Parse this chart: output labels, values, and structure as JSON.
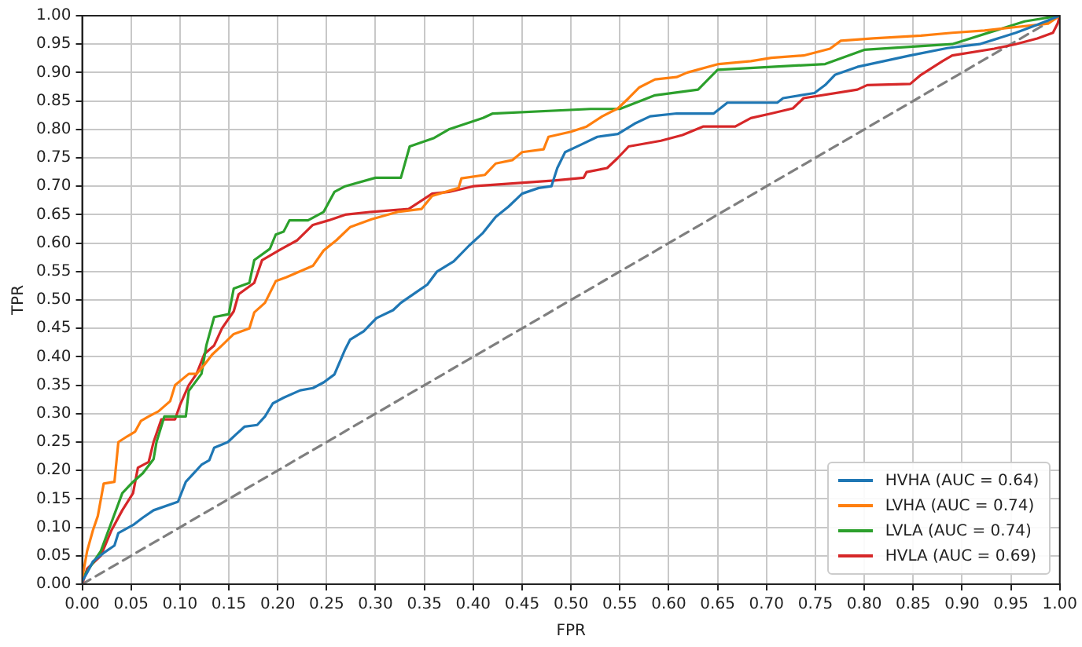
{
  "chart_data": {
    "type": "line",
    "xlabel": "FPR",
    "ylabel": "TPR",
    "xlim": [
      0,
      1
    ],
    "ylim": [
      0,
      1
    ],
    "xticks": [
      {
        "value": 0,
        "label": "0.00"
      },
      {
        "value": 0.05,
        "label": "0.05"
      },
      {
        "value": 0.1,
        "label": "0.10"
      },
      {
        "value": 0.15,
        "label": "0.15"
      },
      {
        "value": 0.2,
        "label": "0.20"
      },
      {
        "value": 0.25,
        "label": "0.25"
      },
      {
        "value": 0.3,
        "label": "0.30"
      },
      {
        "value": 0.35,
        "label": "0.35"
      },
      {
        "value": 0.4,
        "label": "0.40"
      },
      {
        "value": 0.45,
        "label": "0.45"
      },
      {
        "value": 0.5,
        "label": "0.50"
      },
      {
        "value": 0.55,
        "label": "0.55"
      },
      {
        "value": 0.6,
        "label": "0.60"
      },
      {
        "value": 0.65,
        "label": "0.65"
      },
      {
        "value": 0.7,
        "label": "0.70"
      },
      {
        "value": 0.75,
        "label": "0.75"
      },
      {
        "value": 0.8,
        "label": "0.80"
      },
      {
        "value": 0.85,
        "label": "0.85"
      },
      {
        "value": 0.9,
        "label": "0.90"
      },
      {
        "value": 0.95,
        "label": "0.95"
      },
      {
        "value": 1,
        "label": "1.00"
      }
    ],
    "yticks": [
      {
        "value": 0,
        "label": "0.00"
      },
      {
        "value": 0.05,
        "label": "0.05"
      },
      {
        "value": 0.1,
        "label": "0.10"
      },
      {
        "value": 0.15,
        "label": "0.15"
      },
      {
        "value": 0.2,
        "label": "0.20"
      },
      {
        "value": 0.25,
        "label": "0.25"
      },
      {
        "value": 0.3,
        "label": "0.30"
      },
      {
        "value": 0.35,
        "label": "0.35"
      },
      {
        "value": 0.4,
        "label": "0.40"
      },
      {
        "value": 0.45,
        "label": "0.45"
      },
      {
        "value": 0.5,
        "label": "0.50"
      },
      {
        "value": 0.55,
        "label": "0.55"
      },
      {
        "value": 0.6,
        "label": "0.60"
      },
      {
        "value": 0.65,
        "label": "0.65"
      },
      {
        "value": 0.7,
        "label": "0.70"
      },
      {
        "value": 0.75,
        "label": "0.75"
      },
      {
        "value": 0.8,
        "label": "0.80"
      },
      {
        "value": 0.85,
        "label": "0.85"
      },
      {
        "value": 0.9,
        "label": "0.90"
      },
      {
        "value": 0.95,
        "label": "0.95"
      },
      {
        "value": 1,
        "label": "1.00"
      }
    ],
    "grid": true,
    "legend": "bottom right",
    "marker": "none",
    "line_style": "solid",
    "series": [
      {
        "name": "HVHA (AUC = 0.64)",
        "color": "#1f77b4",
        "x": [
          0,
          0,
          0.005,
          0.011,
          0.022,
          0.033,
          0.037,
          0.052,
          0.062,
          0.073,
          0.098,
          0.106,
          0.114,
          0.122,
          0.13,
          0.135,
          0.149,
          0.157,
          0.166,
          0.179,
          0.187,
          0.195,
          0.206,
          0.223,
          0.236,
          0.247,
          0.258,
          0.269,
          0.274,
          0.288,
          0.301,
          0.318,
          0.326,
          0.342,
          0.353,
          0.363,
          0.38,
          0.396,
          0.41,
          0.423,
          0.436,
          0.45,
          0.467,
          0.48,
          0.486,
          0.494,
          0.51,
          0.527,
          0.548,
          0.565,
          0.581,
          0.608,
          0.646,
          0.66,
          0.711,
          0.717,
          0.749,
          0.76,
          0.77,
          0.793,
          0.82,
          0.847,
          0.885,
          0.918,
          0.955,
          0.977,
          1
        ],
        "values": [
          0,
          0.005,
          0.02,
          0.04,
          0.055,
          0.068,
          0.09,
          0.104,
          0.117,
          0.13,
          0.145,
          0.18,
          0.195,
          0.21,
          0.218,
          0.24,
          0.25,
          0.263,
          0.277,
          0.28,
          0.295,
          0.318,
          0.328,
          0.341,
          0.345,
          0.355,
          0.369,
          0.413,
          0.43,
          0.445,
          0.468,
          0.482,
          0.495,
          0.514,
          0.527,
          0.55,
          0.568,
          0.596,
          0.618,
          0.646,
          0.664,
          0.687,
          0.697,
          0.7,
          0.732,
          0.76,
          0.773,
          0.787,
          0.792,
          0.81,
          0.823,
          0.828,
          0.828,
          0.847,
          0.847,
          0.855,
          0.864,
          0.878,
          0.896,
          0.91,
          0.92,
          0.93,
          0.943,
          0.95,
          0.97,
          0.984,
          1
        ]
      },
      {
        "name": "LVHA (AUC = 0.74)",
        "color": "#ff7f0e",
        "x": [
          0,
          0,
          0.005,
          0.011,
          0.016,
          0.022,
          0.033,
          0.037,
          0.046,
          0.054,
          0.06,
          0.068,
          0.078,
          0.09,
          0.095,
          0.109,
          0.117,
          0.125,
          0.133,
          0.143,
          0.155,
          0.171,
          0.176,
          0.187,
          0.198,
          0.209,
          0.236,
          0.247,
          0.26,
          0.274,
          0.296,
          0.323,
          0.347,
          0.358,
          0.385,
          0.388,
          0.412,
          0.423,
          0.44,
          0.45,
          0.472,
          0.477,
          0.5,
          0.516,
          0.532,
          0.548,
          0.559,
          0.57,
          0.586,
          0.608,
          0.619,
          0.651,
          0.684,
          0.705,
          0.738,
          0.765,
          0.776,
          0.809,
          0.858,
          0.89,
          0.923,
          0.955,
          0.988,
          1
        ],
        "values": [
          0,
          0.01,
          0.058,
          0.095,
          0.12,
          0.177,
          0.18,
          0.25,
          0.26,
          0.268,
          0.287,
          0.295,
          0.304,
          0.322,
          0.35,
          0.37,
          0.37,
          0.386,
          0.404,
          0.42,
          0.44,
          0.45,
          0.478,
          0.495,
          0.533,
          0.54,
          0.56,
          0.587,
          0.605,
          0.628,
          0.642,
          0.655,
          0.66,
          0.683,
          0.697,
          0.714,
          0.72,
          0.74,
          0.746,
          0.76,
          0.765,
          0.787,
          0.796,
          0.805,
          0.823,
          0.837,
          0.855,
          0.874,
          0.888,
          0.892,
          0.9,
          0.915,
          0.92,
          0.926,
          0.93,
          0.942,
          0.956,
          0.96,
          0.965,
          0.97,
          0.974,
          0.98,
          0.986,
          1
        ]
      },
      {
        "name": "LVLA (AUC = 0.74)",
        "color": "#2ca02c",
        "x": [
          0,
          0,
          0.019,
          0.041,
          0.052,
          0.062,
          0.073,
          0.076,
          0.084,
          0.106,
          0.109,
          0.122,
          0.127,
          0.135,
          0.15,
          0.155,
          0.171,
          0.176,
          0.192,
          0.198,
          0.206,
          0.212,
          0.231,
          0.247,
          0.258,
          0.269,
          0.3,
          0.326,
          0.335,
          0.36,
          0.375,
          0.41,
          0.42,
          0.52,
          0.55,
          0.586,
          0.63,
          0.65,
          0.76,
          0.8,
          0.89,
          0.964,
          1
        ],
        "values": [
          0,
          0.01,
          0.058,
          0.16,
          0.18,
          0.195,
          0.22,
          0.25,
          0.295,
          0.295,
          0.34,
          0.37,
          0.42,
          0.47,
          0.475,
          0.52,
          0.53,
          0.57,
          0.59,
          0.615,
          0.62,
          0.64,
          0.64,
          0.655,
          0.69,
          0.7,
          0.715,
          0.715,
          0.77,
          0.785,
          0.8,
          0.82,
          0.828,
          0.836,
          0.836,
          0.86,
          0.87,
          0.905,
          0.915,
          0.94,
          0.95,
          0.99,
          1
        ]
      },
      {
        "name": "HVLA (AUC = 0.69)",
        "color": "#d62728",
        "x": [
          0,
          0.005,
          0.019,
          0.03,
          0.041,
          0.052,
          0.057,
          0.068,
          0.073,
          0.081,
          0.095,
          0.1,
          0.109,
          0.117,
          0.125,
          0.135,
          0.143,
          0.155,
          0.16,
          0.176,
          0.184,
          0.204,
          0.22,
          0.236,
          0.252,
          0.269,
          0.296,
          0.334,
          0.358,
          0.375,
          0.4,
          0.483,
          0.513,
          0.516,
          0.537,
          0.548,
          0.559,
          0.592,
          0.614,
          0.635,
          0.668,
          0.684,
          0.705,
          0.727,
          0.738,
          0.793,
          0.803,
          0.847,
          0.858,
          0.88,
          0.89,
          0.933,
          0.955,
          0.977,
          0.993,
          0.998,
          1
        ],
        "values": [
          0,
          0.027,
          0.05,
          0.095,
          0.13,
          0.16,
          0.205,
          0.215,
          0.25,
          0.29,
          0.29,
          0.315,
          0.35,
          0.37,
          0.405,
          0.42,
          0.45,
          0.48,
          0.51,
          0.53,
          0.57,
          0.59,
          0.605,
          0.632,
          0.64,
          0.65,
          0.655,
          0.66,
          0.687,
          0.69,
          0.7,
          0.71,
          0.715,
          0.725,
          0.732,
          0.75,
          0.77,
          0.78,
          0.79,
          0.805,
          0.805,
          0.82,
          0.828,
          0.837,
          0.855,
          0.87,
          0.878,
          0.88,
          0.896,
          0.92,
          0.93,
          0.942,
          0.95,
          0.96,
          0.97,
          0.987,
          1
        ]
      },
      {
        "color": "#7f7f7f",
        "line_style": "dashed",
        "x": [
          0,
          1
        ],
        "values": [
          0,
          1
        ]
      }
    ]
  }
}
